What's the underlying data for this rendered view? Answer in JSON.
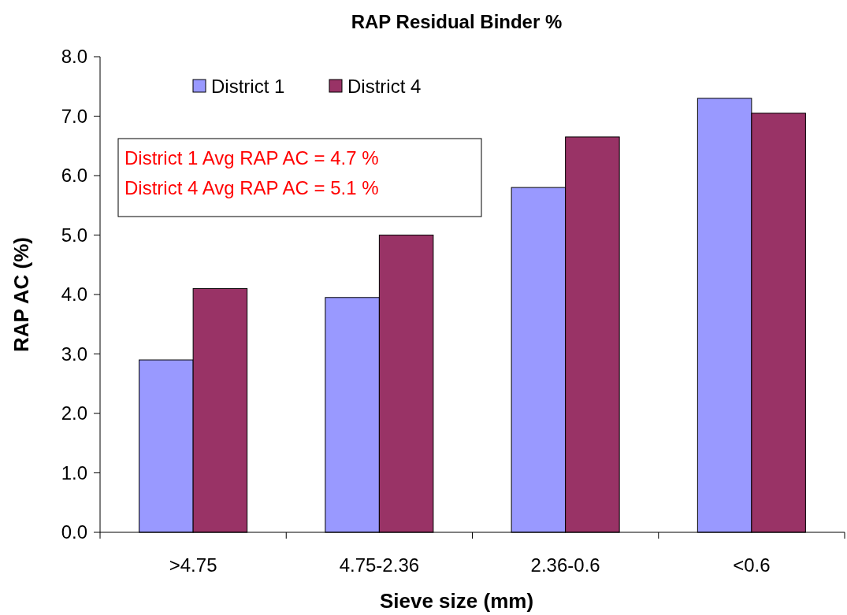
{
  "chart_data": {
    "type": "bar",
    "title": "RAP Residual Binder %",
    "xlabel": "Sieve size (mm)",
    "ylabel": "RAP AC (%)",
    "categories": [
      ">4.75",
      "4.75-2.36",
      "2.36-0.6",
      "<0.6"
    ],
    "series": [
      {
        "name": "District 1",
        "color": "#9999ff",
        "values": [
          2.9,
          3.95,
          5.8,
          7.3
        ]
      },
      {
        "name": "District 4",
        "color": "#993366",
        "values": [
          4.1,
          5.0,
          6.65,
          7.05
        ]
      }
    ],
    "ylim": [
      0,
      8
    ],
    "yticks": [
      {
        "value": 0,
        "label": "0.0"
      },
      {
        "value": 1,
        "label": "1.0"
      },
      {
        "value": 2,
        "label": "2.0"
      },
      {
        "value": 3,
        "label": "3.0"
      },
      {
        "value": 4,
        "label": "4.0"
      },
      {
        "value": 5,
        "label": "5.0"
      },
      {
        "value": 6,
        "label": "6.0"
      },
      {
        "value": 7,
        "label": "7.0"
      },
      {
        "value": 8,
        "label": "8.0"
      }
    ],
    "annotations": [
      "District 1 Avg RAP AC = 4.7 %",
      "District 4 Avg RAP AC = 5.1 %"
    ],
    "legend": "top left",
    "grid": false
  }
}
